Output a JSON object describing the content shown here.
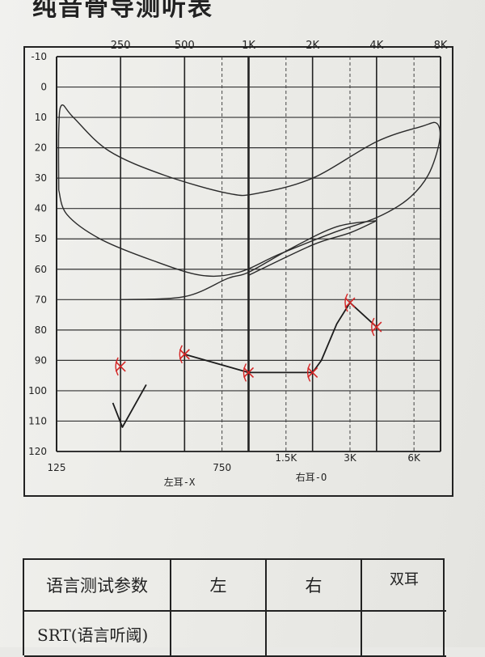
{
  "page": {
    "title": "纯音骨导测听表"
  },
  "chart_data": {
    "type": "line",
    "x_scale": "log",
    "x_top_ticks": [
      {
        "f": 250,
        "label": "250"
      },
      {
        "f": 500,
        "label": "500"
      },
      {
        "f": 1000,
        "label": "1K"
      },
      {
        "f": 2000,
        "label": "2K"
      },
      {
        "f": 4000,
        "label": "4K"
      },
      {
        "f": 8000,
        "label": "8K"
      }
    ],
    "x_bottom_ticks": [
      {
        "f": 125,
        "label": "125"
      },
      {
        "f": 750,
        "label": "750"
      },
      {
        "f": 1500,
        "label": "1.5K"
      },
      {
        "f": 3000,
        "label": "3K"
      },
      {
        "f": 6000,
        "label": "6K"
      }
    ],
    "xlim": [
      125,
      8000
    ],
    "ylim": [
      -10,
      120
    ],
    "y_reversed": true,
    "y_ticks": [
      -10,
      0,
      10,
      20,
      30,
      40,
      50,
      60,
      70,
      80,
      90,
      100,
      110,
      120
    ],
    "grid": true,
    "legend": [
      "左耳-X",
      "右耳-O"
    ],
    "series": [
      {
        "marker": "X",
        "color": "#d42525",
        "points": [
          {
            "x": 250,
            "y": 92
          },
          {
            "x": 500,
            "y": 88
          },
          {
            "x": 1000,
            "y": 94
          },
          {
            "x": 2000,
            "y": 94
          },
          {
            "x": 3000,
            "y": 71
          },
          {
            "x": 4000,
            "y": 79
          }
        ]
      }
    ],
    "hand_lines": [
      {
        "color": "#1c1c1c",
        "points": [
          [
            500,
            88
          ],
          [
            1000,
            94
          ],
          [
            2000,
            94
          ],
          [
            2200,
            90
          ],
          [
            2600,
            78
          ],
          [
            3000,
            71
          ],
          [
            4000,
            79
          ]
        ]
      },
      {
        "color": "#1c1c1c",
        "points": [
          [
            230,
            104
          ],
          [
            255,
            112
          ],
          [
            330,
            98
          ]
        ]
      }
    ],
    "reference_curves": [
      {
        "name": "speech banana",
        "color": "#2a2a2a"
      }
    ]
  },
  "table": {
    "header": [
      "语言测试参数",
      "左",
      "右",
      "双耳"
    ],
    "row1": [
      "SRT(语言听阈)",
      "",
      "",
      ""
    ]
  }
}
